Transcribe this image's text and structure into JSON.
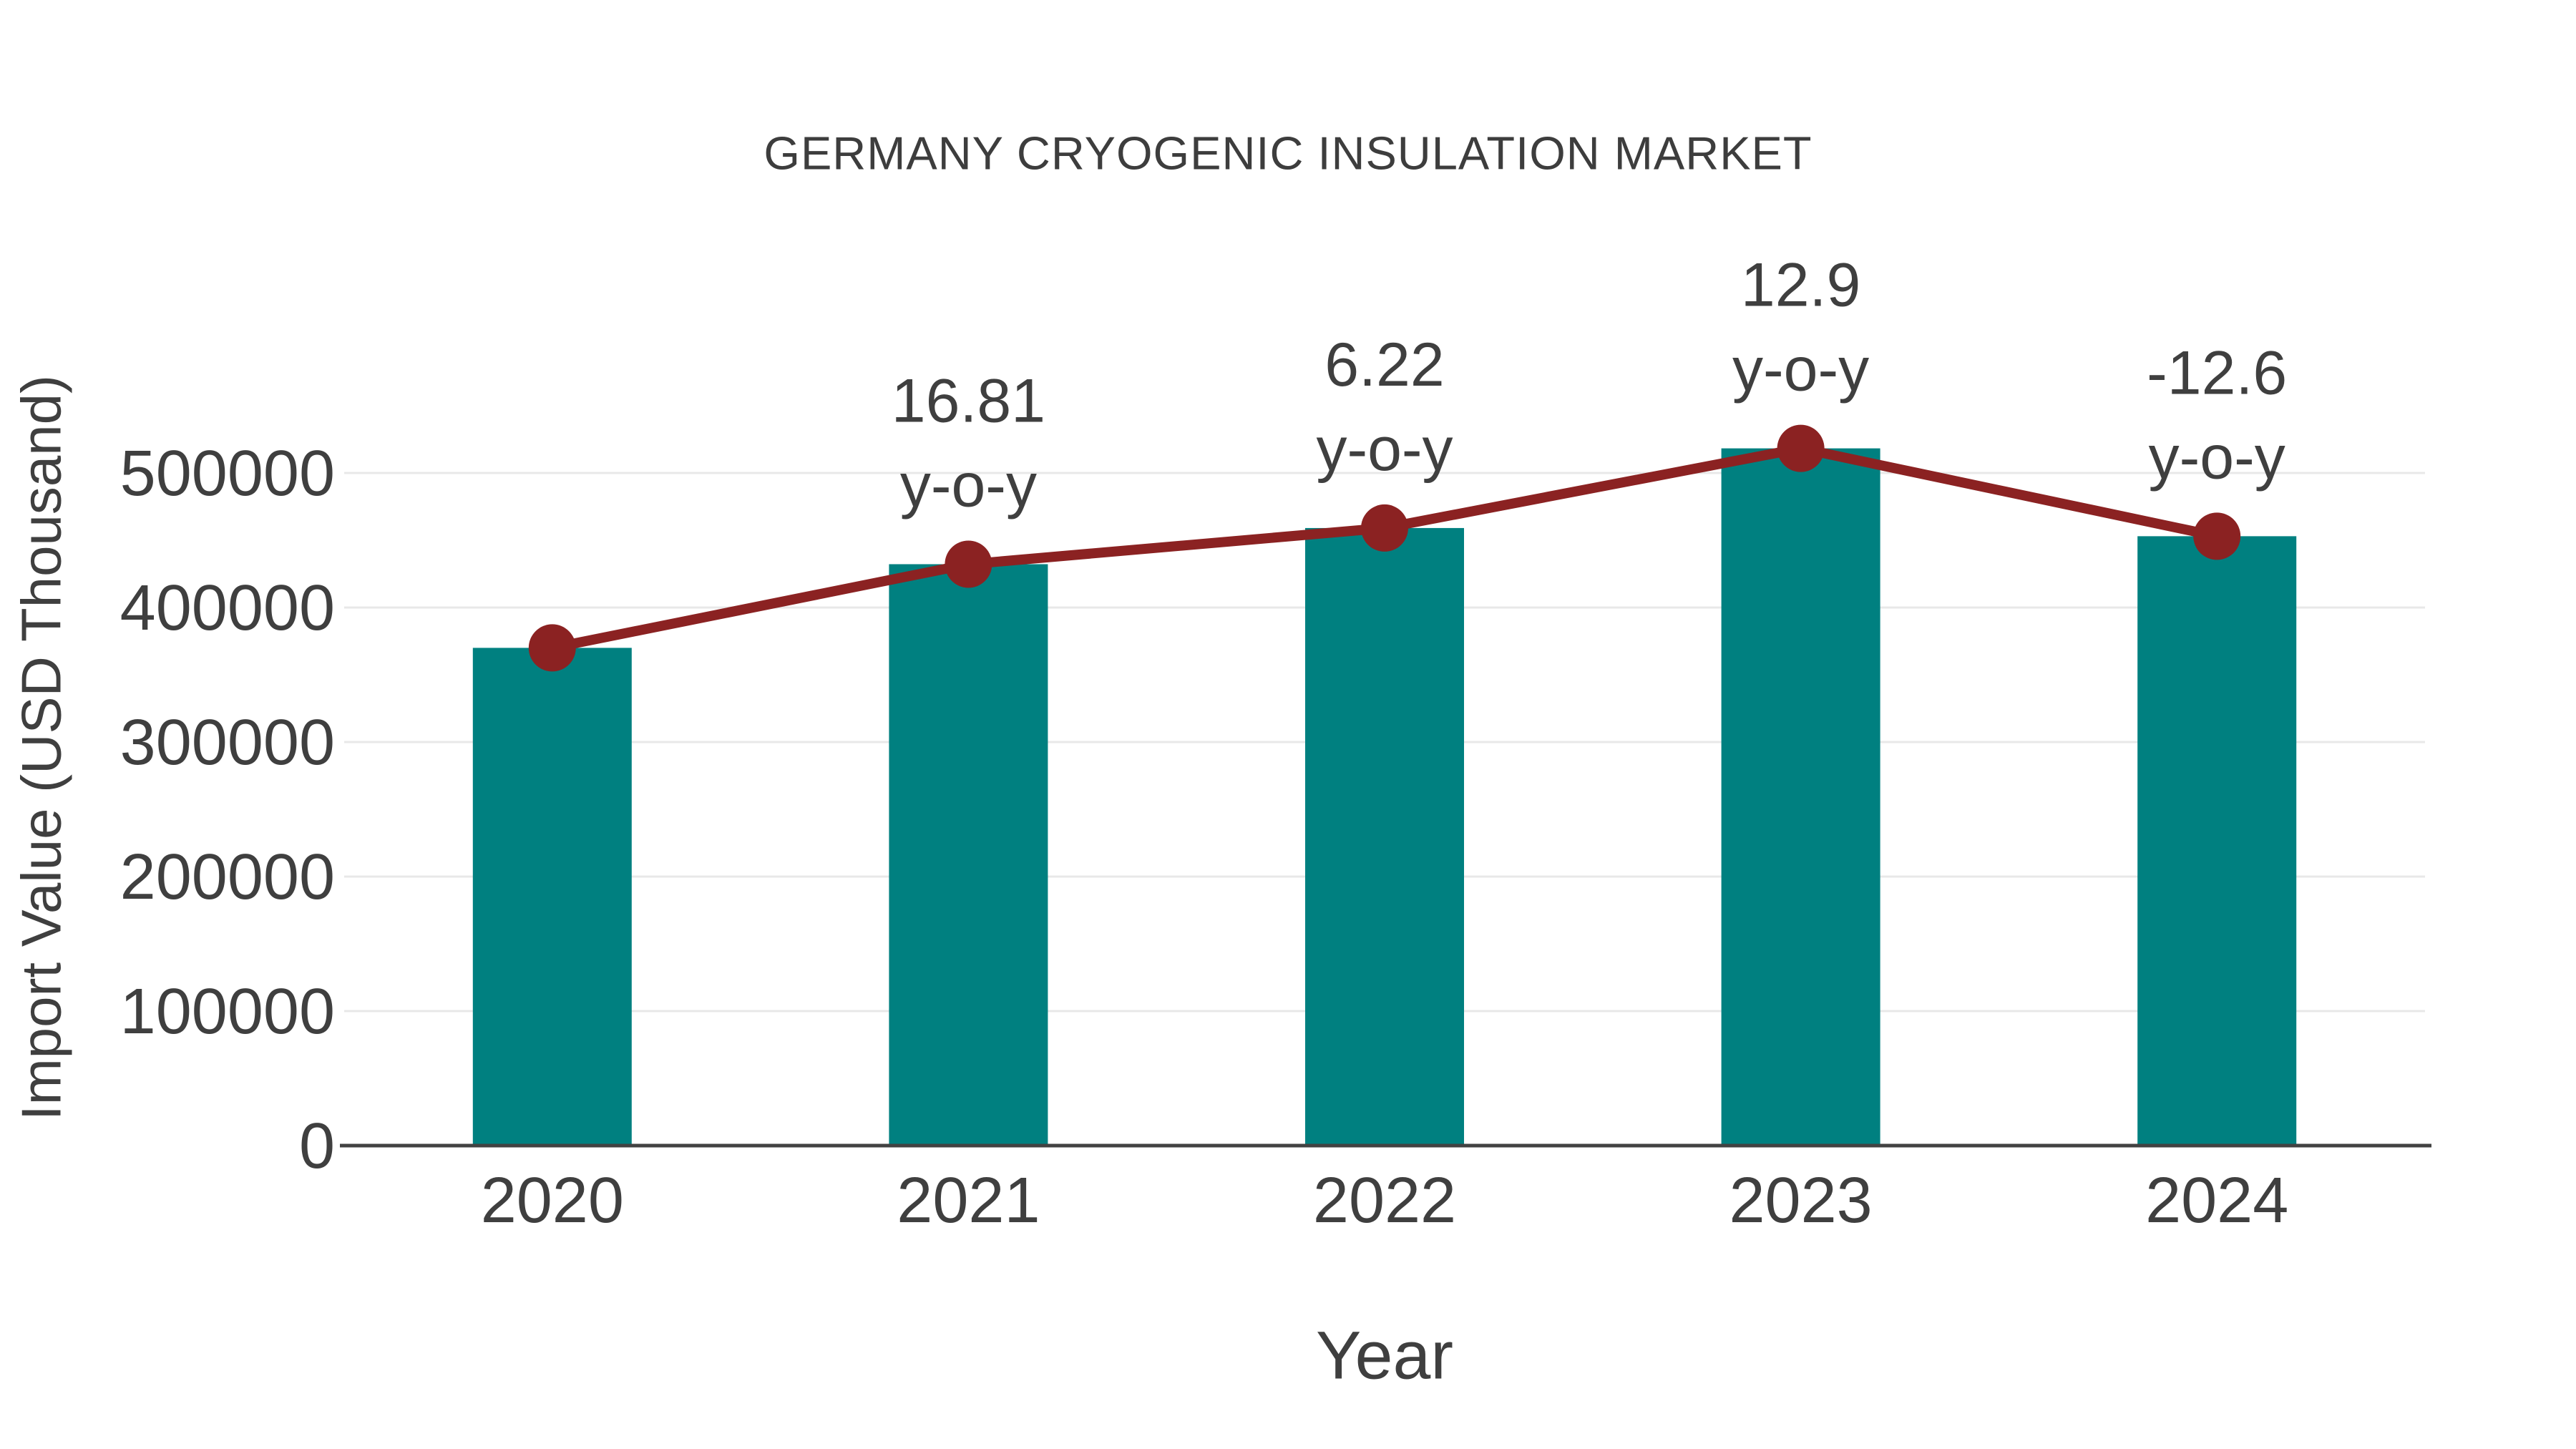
{
  "chart_data": {
    "type": "bar",
    "title": "GERMANY CRYOGENIC INSULATION MARKET",
    "xlabel": "Year",
    "ylabel": "Import Value (USD Thousand)",
    "categories": [
      "2020",
      "2021",
      "2022",
      "2023",
      "2024"
    ],
    "series": [
      {
        "name": "import-value-bars",
        "type": "bar",
        "color": "#008080",
        "values": [
          370000,
          432197,
          459082,
          518304,
          452997
        ]
      },
      {
        "name": "yoy-trend-line",
        "type": "line",
        "color": "#8b2222",
        "values": [
          370000,
          432197,
          459082,
          518304,
          452997
        ],
        "point_labels": [
          "",
          "16.81",
          "6.22",
          "12.9",
          "-12.6"
        ],
        "point_label_suffix": "y-o-y"
      }
    ],
    "yticks": [
      0,
      100000,
      200000,
      300000,
      400000,
      500000
    ],
    "ylim": [
      0,
      560000
    ],
    "grid": "horizontal",
    "legend": "none",
    "colors": {
      "bar": "#008080",
      "line": "#8b2222",
      "marker": "#8b2222",
      "grid": "#e8e8e8",
      "axis_line": "#424242",
      "text": "#3f3f3f",
      "title_text": "#3d3d3d",
      "background": "#ffffff"
    }
  }
}
